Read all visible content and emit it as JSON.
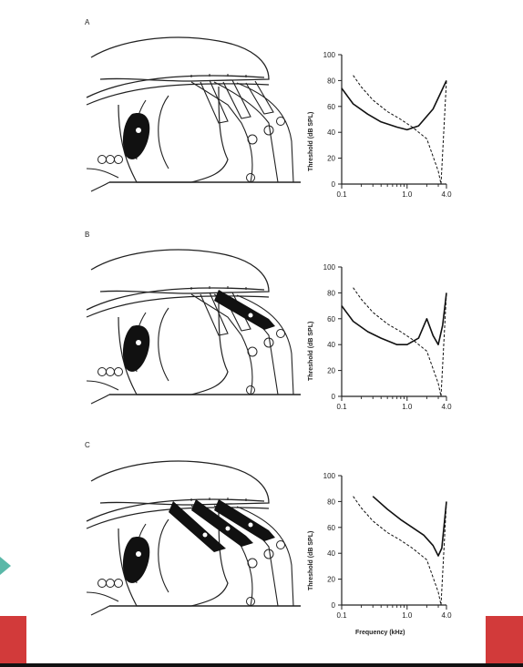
{
  "panels": {
    "a": {
      "label": "A"
    },
    "b": {
      "label": "B"
    },
    "c": {
      "label": "C"
    }
  },
  "axes": {
    "ylabel": "Threshold (dB SPL)",
    "xlabel": "Frequency (kHz)",
    "yticks": [
      "0",
      "20",
      "40",
      "60",
      "80",
      "100"
    ],
    "xticks": [
      "0.1",
      "1.0",
      "4.0"
    ]
  },
  "chart_data": [
    {
      "type": "line",
      "panel": "A",
      "ylim": [
        0,
        100
      ],
      "xlim": [
        0.1,
        4.0
      ],
      "xscale": "log",
      "series": [
        {
          "style": "solid",
          "x": [
            0.1,
            0.15,
            0.25,
            0.4,
            0.7,
            1.0,
            1.5,
            2.5,
            4.0
          ],
          "y": [
            74,
            62,
            54,
            48,
            44,
            42,
            45,
            58,
            80
          ]
        },
        {
          "style": "dashed",
          "x": [
            0.15,
            0.2,
            0.3,
            0.5,
            0.8,
            1.2,
            2.0,
            3.0,
            3.3,
            4.0
          ],
          "y": [
            84,
            75,
            65,
            56,
            50,
            44,
            35,
            10,
            0,
            80
          ]
        }
      ]
    },
    {
      "type": "line",
      "panel": "B",
      "ylim": [
        0,
        100
      ],
      "xlim": [
        0.1,
        4.0
      ],
      "xscale": "log",
      "series": [
        {
          "style": "solid",
          "x": [
            0.1,
            0.15,
            0.25,
            0.4,
            0.7,
            1.0,
            1.5,
            2.0,
            2.5,
            3.0,
            3.5,
            4.0
          ],
          "y": [
            70,
            58,
            50,
            45,
            40,
            40,
            45,
            60,
            47,
            40,
            55,
            80
          ]
        },
        {
          "style": "dashed",
          "x": [
            0.15,
            0.2,
            0.3,
            0.5,
            0.8,
            1.2,
            2.0,
            3.0,
            3.3,
            4.0
          ],
          "y": [
            84,
            75,
            65,
            56,
            50,
            44,
            35,
            10,
            0,
            80
          ]
        }
      ]
    },
    {
      "type": "line",
      "panel": "C",
      "ylim": [
        0,
        100
      ],
      "xlim": [
        0.1,
        4.0
      ],
      "xscale": "log",
      "series": [
        {
          "style": "solid",
          "x": [
            0.3,
            0.5,
            0.8,
            1.2,
            1.8,
            2.5,
            3.0,
            3.4,
            4.0
          ],
          "y": [
            84,
            74,
            66,
            60,
            54,
            46,
            38,
            44,
            80
          ]
        },
        {
          "style": "dashed",
          "x": [
            0.15,
            0.2,
            0.3,
            0.5,
            0.8,
            1.2,
            2.0,
            3.0,
            3.3,
            4.0
          ],
          "y": [
            84,
            75,
            65,
            56,
            50,
            44,
            35,
            10,
            0,
            80
          ]
        }
      ]
    }
  ]
}
